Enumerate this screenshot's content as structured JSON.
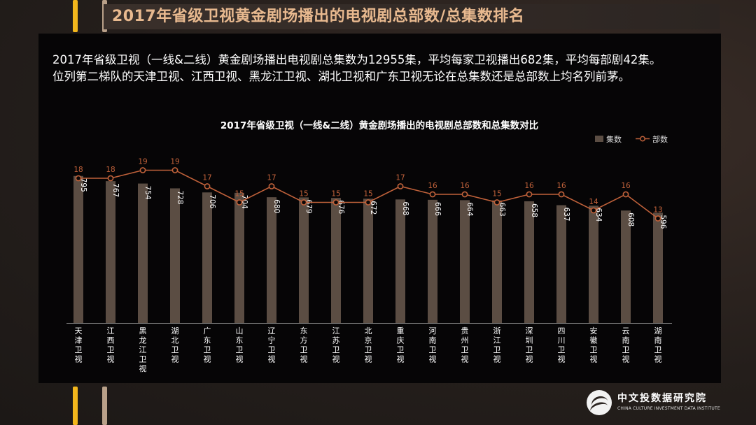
{
  "page": {
    "title": "2017年省级卫视黄金剧场播出的电视剧总部数/总集数排名",
    "summary_lines": [
      "2017年省级卫视（一线&二线）黄金剧场播出电视剧总集数为12955集，平均每家卫视播出682集，平均每部剧42集。",
      "位列第二梯队的天津卫视、江西卫视、黑龙江卫视、湖北卫视和广东卫视无论在总集数还是总部数上均名列前茅。"
    ]
  },
  "logo": {
    "name_cn": "中文投数据研究院",
    "name_en": "CHINA CULTURE INVESTMENT DATA INSTITUTE"
  },
  "colors": {
    "bar": "#5b4d43",
    "line": "#c0613a",
    "marker_fill": "#0a0808",
    "line_label": "#c0613a",
    "bar_label": "#ffffff",
    "axis_text": "#ffffff",
    "title_accent": "#e8b98f",
    "road_yellow": "#f2b61c",
    "road_tan": "#b9a089"
  },
  "chart_data": {
    "type": "bar",
    "title": "2017年省级卫视（一线&二线）黄金剧场播出的电视剧总部数和总集数对比",
    "legend_position": "top-right",
    "grid": false,
    "categories": [
      "天津卫视",
      "江西卫视",
      "黑龙江卫视",
      "湖北卫视",
      "广东卫视",
      "山东卫视",
      "辽宁卫视",
      "东方卫视",
      "江苏卫视",
      "北京卫视",
      "重庆卫视",
      "河南卫视",
      "贵州卫视",
      "浙江卫视",
      "深圳卫视",
      "四川卫视",
      "安徽卫视",
      "云南卫视",
      "湖南卫视"
    ],
    "series": [
      {
        "name": "集数",
        "type": "bar",
        "values": [
          795,
          767,
          754,
          728,
          706,
          704,
          680,
          679,
          676,
          672,
          668,
          666,
          664,
          663,
          658,
          637,
          634,
          608,
          596
        ]
      },
      {
        "name": "部数",
        "type": "line",
        "values": [
          18,
          18,
          19,
          19,
          17,
          15,
          17,
          15,
          15,
          15,
          17,
          16,
          16,
          15,
          16,
          16,
          14,
          16,
          13
        ]
      }
    ]
  }
}
